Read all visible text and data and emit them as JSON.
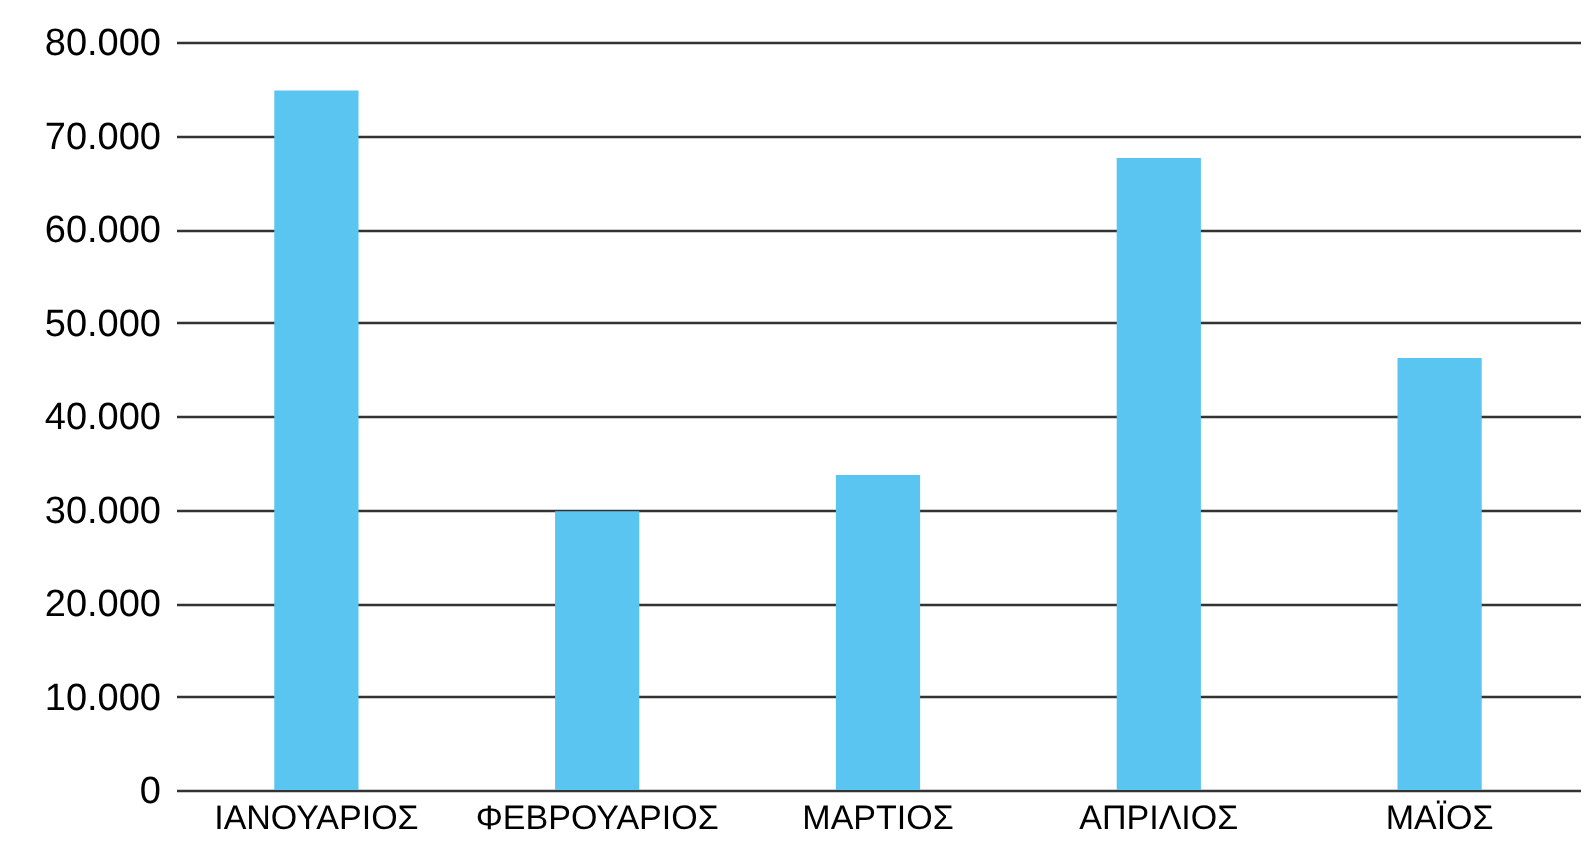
{
  "chart_data": {
    "type": "bar",
    "categories": [
      "ΙΑΝΟΥΑΡΙΟΣ",
      "ΦΕΒΡΟΥΑΡΙΟΣ",
      "ΜΑΡΤΙΟΣ",
      "ΑΠΡΙΛΙΟΣ",
      "ΜΑΪΟΣ"
    ],
    "values": [
      74800,
      29800,
      33700,
      67600,
      46200
    ],
    "color": "#5bc5f2",
    "ylim": [
      0,
      80000
    ],
    "yticks": [
      0,
      {
        "value": 10000,
        "label": "10.000"
      },
      {
        "value": 20000,
        "label": "20.000"
      },
      {
        "value": 30000,
        "label": "30.000"
      },
      {
        "value": 40000,
        "label": "40.000"
      },
      {
        "value": 50000,
        "label": "50.000"
      },
      {
        "value": 60000,
        "label": "60.000"
      },
      {
        "value": 70000,
        "label": "70.000"
      },
      {
        "value": 80000,
        "label": "80.000"
      }
    ],
    "grid": true
  }
}
